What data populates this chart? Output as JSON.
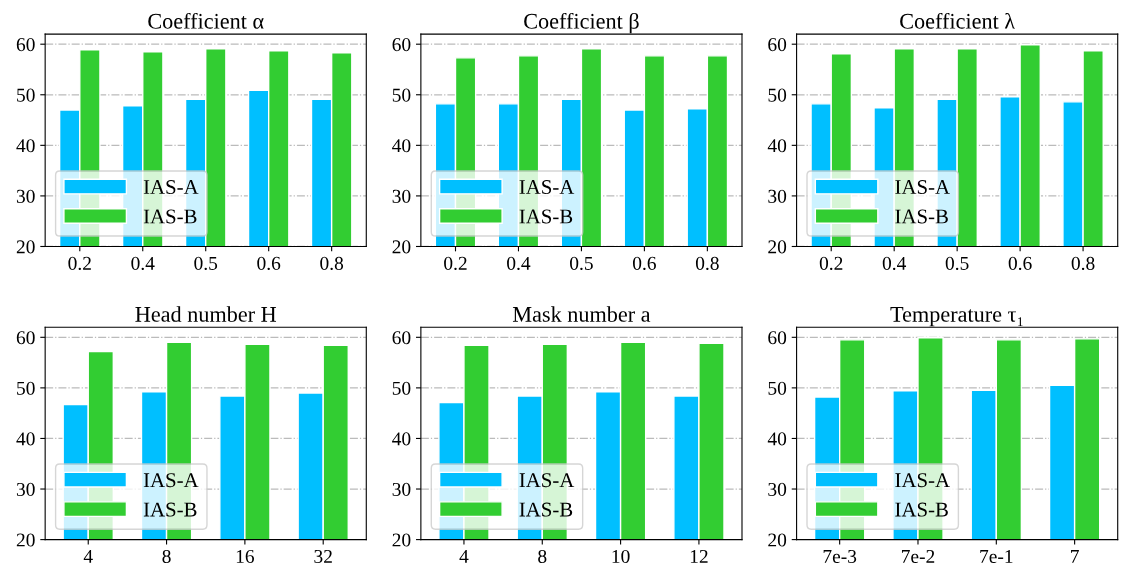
{
  "chart_data": [
    {
      "type": "bar",
      "title": "Coefficient α",
      "categories": [
        "0.2",
        "0.4",
        "0.5",
        "0.6",
        "0.8"
      ],
      "ylim": [
        20,
        62
      ],
      "yticks": [
        20,
        30,
        40,
        50,
        60
      ],
      "grid": "y",
      "legend": "bottom left",
      "series": [
        {
          "name": "IAS-A",
          "color": "#00bfff",
          "values": [
            47.0,
            47.8,
            49.1,
            50.9,
            49.1
          ]
        },
        {
          "name": "IAS-B",
          "color": "#32cd32",
          "values": [
            58.9,
            58.5,
            59.1,
            58.7,
            58.3
          ]
        }
      ]
    },
    {
      "type": "bar",
      "title": "Coefficient β",
      "categories": [
        "0.2",
        "0.4",
        "0.5",
        "0.6",
        "0.8"
      ],
      "ylim": [
        20,
        62
      ],
      "yticks": [
        20,
        30,
        40,
        50,
        60
      ],
      "grid": "y",
      "legend": "bottom left",
      "series": [
        {
          "name": "IAS-A",
          "color": "#00bfff",
          "values": [
            48.2,
            48.2,
            49.1,
            47.0,
            47.2
          ]
        },
        {
          "name": "IAS-B",
          "color": "#32cd32",
          "values": [
            57.3,
            57.7,
            59.1,
            57.7,
            57.7
          ]
        }
      ]
    },
    {
      "type": "bar",
      "title": "Coefficient λ",
      "categories": [
        "0.2",
        "0.4",
        "0.5",
        "0.6",
        "0.8"
      ],
      "ylim": [
        20,
        62
      ],
      "yticks": [
        20,
        30,
        40,
        50,
        60
      ],
      "grid": "y",
      "legend": "bottom left",
      "series": [
        {
          "name": "IAS-A",
          "color": "#00bfff",
          "values": [
            48.2,
            47.4,
            49.1,
            49.6,
            48.6
          ]
        },
        {
          "name": "IAS-B",
          "color": "#32cd32",
          "values": [
            58.1,
            59.1,
            59.1,
            59.9,
            58.7
          ]
        }
      ]
    },
    {
      "type": "bar",
      "title": "Head number H",
      "categories": [
        "4",
        "8",
        "16",
        "32"
      ],
      "ylim": [
        20,
        62
      ],
      "yticks": [
        20,
        30,
        40,
        50,
        60
      ],
      "grid": "y",
      "legend": "bottom left",
      "series": [
        {
          "name": "IAS-A",
          "color": "#00bfff",
          "values": [
            46.7,
            49.2,
            48.4,
            49.0
          ]
        },
        {
          "name": "IAS-B",
          "color": "#32cd32",
          "values": [
            57.2,
            59.0,
            58.6,
            58.4
          ]
        }
      ]
    },
    {
      "type": "bar",
      "title": "Mask number a",
      "categories": [
        "4",
        "8",
        "10",
        "12"
      ],
      "ylim": [
        20,
        62
      ],
      "yticks": [
        20,
        30,
        40,
        50,
        60
      ],
      "grid": "y",
      "legend": "bottom left",
      "series": [
        {
          "name": "IAS-A",
          "color": "#00bfff",
          "values": [
            47.1,
            48.4,
            49.2,
            48.4
          ]
        },
        {
          "name": "IAS-B",
          "color": "#32cd32",
          "values": [
            58.4,
            58.6,
            59.0,
            58.8
          ]
        }
      ]
    },
    {
      "type": "bar",
      "title": "Temperature τ₁",
      "categories": [
        "7e-3",
        "7e-2",
        "7e-1",
        "7"
      ],
      "ylim": [
        20,
        62
      ],
      "yticks": [
        20,
        30,
        40,
        50,
        60
      ],
      "grid": "y",
      "legend": "bottom left",
      "series": [
        {
          "name": "IAS-A",
          "color": "#00bfff",
          "values": [
            48.2,
            49.4,
            49.5,
            50.5
          ]
        },
        {
          "name": "IAS-B",
          "color": "#32cd32",
          "values": [
            59.5,
            59.9,
            59.5,
            59.7
          ]
        }
      ]
    }
  ]
}
